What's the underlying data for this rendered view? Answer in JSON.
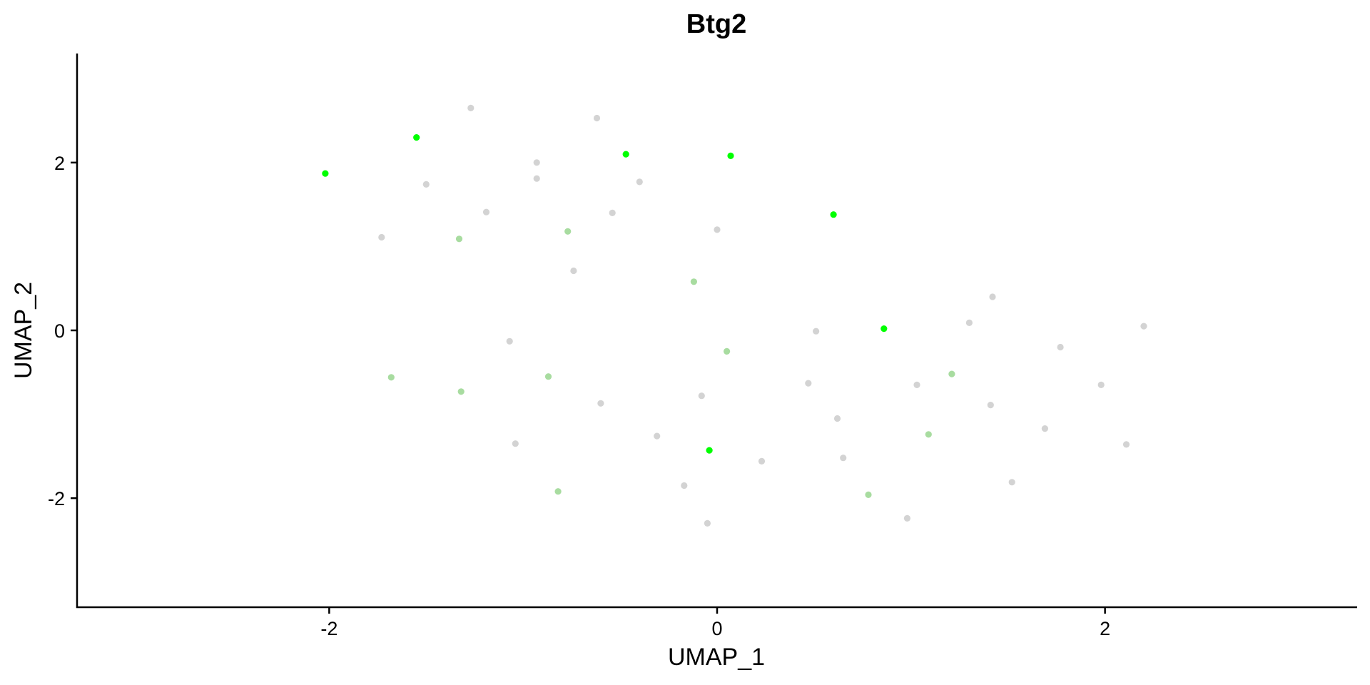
{
  "chart_data": {
    "type": "scatter",
    "title": "Btg2",
    "xlabel": "UMAP_1",
    "ylabel": "UMAP_2",
    "xlim": [
      -3.3,
      3.3
    ],
    "ylim": [
      -3.3,
      3.3
    ],
    "xticks": [
      -2,
      0,
      2
    ],
    "yticks": [
      -2,
      0,
      2
    ],
    "xtick_labels": [
      "-2",
      "0",
      "2"
    ],
    "ytick_labels": [
      "-2",
      "0",
      "2"
    ],
    "grid": false,
    "legend": "none",
    "colors": {
      "low": "#d3d3d3",
      "mid": "#a8dca0",
      "high": "#00ff00"
    },
    "points": [
      {
        "x": -1.27,
        "y": 2.65,
        "level": "low"
      },
      {
        "x": -0.62,
        "y": 2.53,
        "level": "low"
      },
      {
        "x": -1.55,
        "y": 2.3,
        "level": "high"
      },
      {
        "x": -0.93,
        "y": 2.0,
        "level": "low"
      },
      {
        "x": -0.93,
        "y": 1.81,
        "level": "low"
      },
      {
        "x": -2.02,
        "y": 1.87,
        "level": "high"
      },
      {
        "x": -1.5,
        "y": 1.74,
        "level": "low"
      },
      {
        "x": -0.47,
        "y": 2.1,
        "level": "high"
      },
      {
        "x": 0.07,
        "y": 2.08,
        "level": "high"
      },
      {
        "x": -0.4,
        "y": 1.77,
        "level": "low"
      },
      {
        "x": -1.19,
        "y": 1.41,
        "level": "low"
      },
      {
        "x": -0.54,
        "y": 1.4,
        "level": "low"
      },
      {
        "x": 0.6,
        "y": 1.38,
        "level": "high"
      },
      {
        "x": -1.73,
        "y": 1.11,
        "level": "low"
      },
      {
        "x": -1.33,
        "y": 1.09,
        "level": "mid"
      },
      {
        "x": -0.77,
        "y": 1.18,
        "level": "mid"
      },
      {
        "x": 0.0,
        "y": 1.2,
        "level": "low"
      },
      {
        "x": -0.74,
        "y": 0.71,
        "level": "low"
      },
      {
        "x": -0.12,
        "y": 0.58,
        "level": "mid"
      },
      {
        "x": 1.42,
        "y": 0.4,
        "level": "low"
      },
      {
        "x": 1.3,
        "y": 0.09,
        "level": "low"
      },
      {
        "x": 2.2,
        "y": 0.05,
        "level": "low"
      },
      {
        "x": 0.86,
        "y": 0.02,
        "level": "high"
      },
      {
        "x": 0.51,
        "y": -0.01,
        "level": "low"
      },
      {
        "x": -1.07,
        "y": -0.13,
        "level": "low"
      },
      {
        "x": 0.05,
        "y": -0.25,
        "level": "mid"
      },
      {
        "x": 1.77,
        "y": -0.2,
        "level": "low"
      },
      {
        "x": -1.68,
        "y": -0.56,
        "level": "mid"
      },
      {
        "x": -0.87,
        "y": -0.55,
        "level": "mid"
      },
      {
        "x": 1.21,
        "y": -0.52,
        "level": "mid"
      },
      {
        "x": 0.47,
        "y": -0.63,
        "level": "low"
      },
      {
        "x": 1.03,
        "y": -0.65,
        "level": "low"
      },
      {
        "x": 1.98,
        "y": -0.65,
        "level": "low"
      },
      {
        "x": -1.32,
        "y": -0.73,
        "level": "mid"
      },
      {
        "x": -0.08,
        "y": -0.78,
        "level": "low"
      },
      {
        "x": -0.6,
        "y": -0.87,
        "level": "low"
      },
      {
        "x": 1.41,
        "y": -0.89,
        "level": "low"
      },
      {
        "x": 0.62,
        "y": -1.05,
        "level": "low"
      },
      {
        "x": 1.69,
        "y": -1.17,
        "level": "low"
      },
      {
        "x": -0.31,
        "y": -1.26,
        "level": "low"
      },
      {
        "x": 1.09,
        "y": -1.24,
        "level": "mid"
      },
      {
        "x": -1.04,
        "y": -1.35,
        "level": "low"
      },
      {
        "x": 2.11,
        "y": -1.36,
        "level": "low"
      },
      {
        "x": -0.04,
        "y": -1.43,
        "level": "high"
      },
      {
        "x": 0.65,
        "y": -1.52,
        "level": "low"
      },
      {
        "x": 0.23,
        "y": -1.56,
        "level": "low"
      },
      {
        "x": 1.52,
        "y": -1.81,
        "level": "low"
      },
      {
        "x": -0.17,
        "y": -1.85,
        "level": "low"
      },
      {
        "x": -0.82,
        "y": -1.92,
        "level": "mid"
      },
      {
        "x": 0.78,
        "y": -1.96,
        "level": "mid"
      },
      {
        "x": 0.98,
        "y": -2.24,
        "level": "low"
      },
      {
        "x": -0.05,
        "y": -2.3,
        "level": "low"
      }
    ]
  }
}
